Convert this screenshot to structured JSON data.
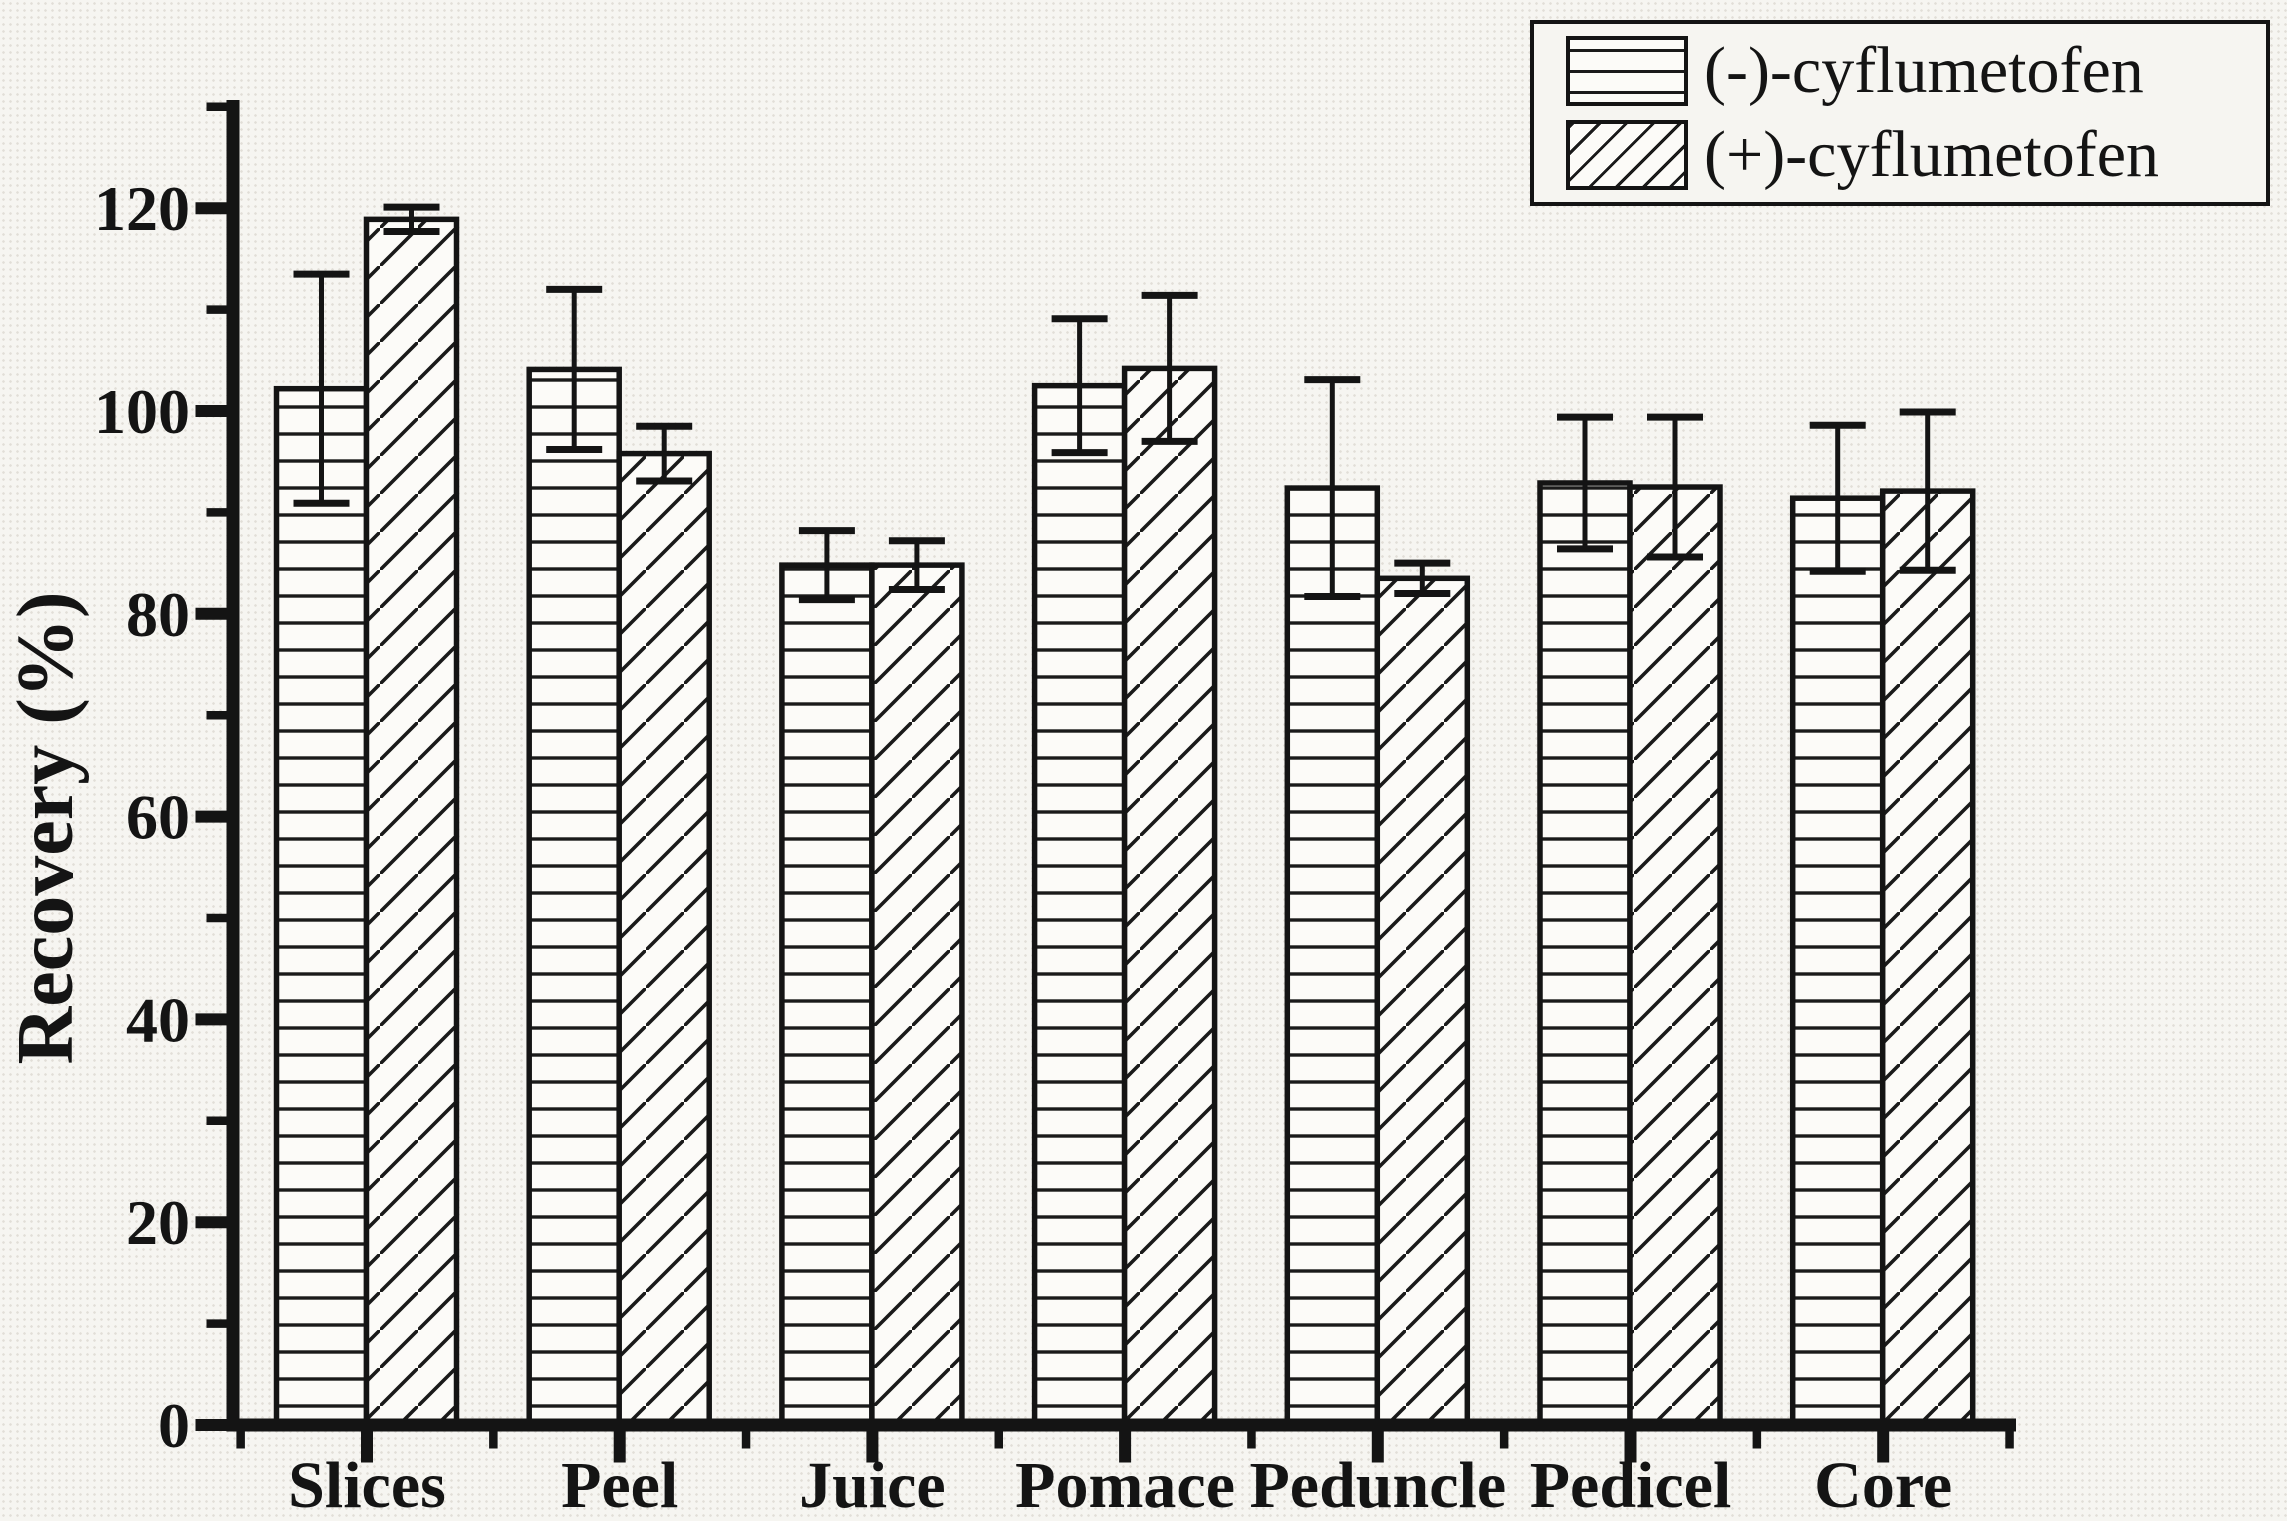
{
  "figure": {
    "background_color": "#f6f5f1",
    "ink_color": "#141414",
    "bar_fill_color": "#fcfbf8"
  },
  "chart_data": {
    "type": "bar",
    "title": "",
    "xlabel": "",
    "ylabel": "Recovery (%)",
    "ylim": [
      0,
      130
    ],
    "yticks_major": [
      0,
      20,
      40,
      60,
      80,
      100,
      120
    ],
    "ytick_minor_step": 10,
    "grid": false,
    "legend_position": "top-right",
    "error_bars": true,
    "categories": [
      "Slices",
      "Peel",
      "Juice",
      "Pomace",
      "Peduncle",
      "Pedicel",
      "Core"
    ],
    "series": [
      {
        "name": "(-)-cyflumetofen",
        "hatch": "horizontal-lines",
        "values": [
          102.2,
          104.1,
          84.8,
          102.5,
          92.4,
          92.9,
          91.4
        ],
        "errors": [
          11.3,
          7.9,
          3.4,
          6.6,
          10.7,
          6.5,
          7.2
        ]
      },
      {
        "name": "(+)-cyflumetofen",
        "hatch": "diagonal-lines",
        "values": [
          118.9,
          95.8,
          84.8,
          104.2,
          83.5,
          92.5,
          92.1
        ],
        "errors": [
          1.2,
          2.7,
          2.4,
          7.2,
          1.5,
          6.9,
          7.8
        ]
      }
    ]
  },
  "legend": {
    "items": [
      {
        "label": "(-)-cyflumetofen",
        "hatch": "horizontal-lines"
      },
      {
        "label": "(+)-cyflumetofen",
        "hatch": "diagonal-lines"
      }
    ]
  }
}
